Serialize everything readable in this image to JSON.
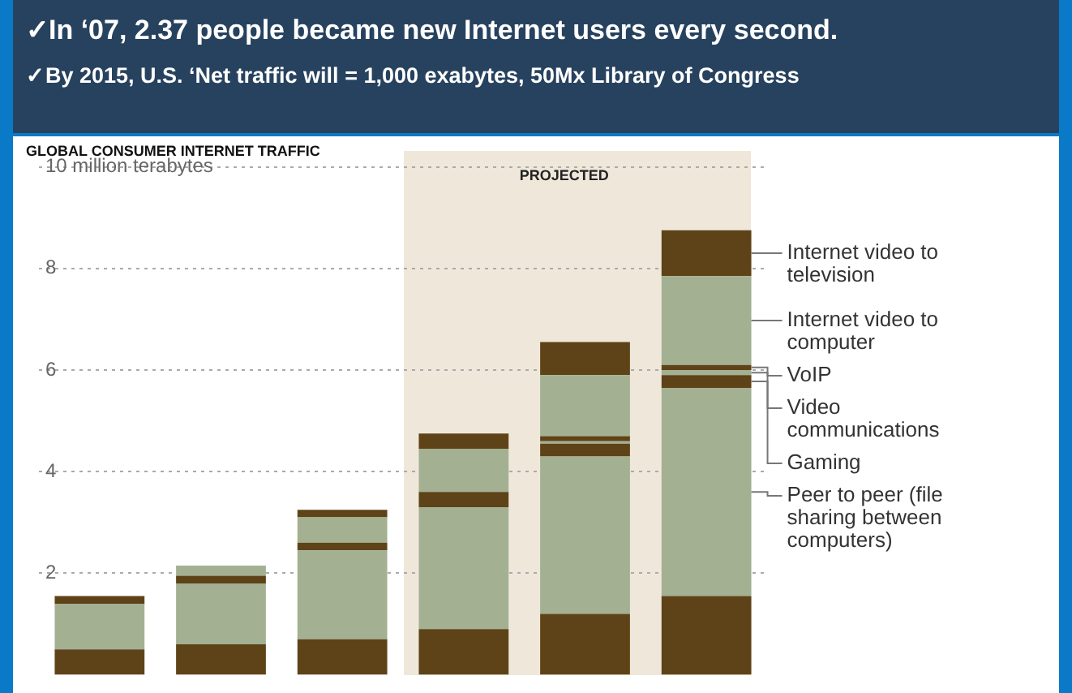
{
  "chart_data": {
    "type": "bar",
    "title": "GLOBAL CONSUMER INTERNET TRAFFIC",
    "annotations": [
      "✓In ‘07, 2.37 people became new Internet users every second.",
      "✓By 2015, U.S. ‘Net traffic will = 1,000 exabytes, 50Mx Library of Congress",
      "PROJECTED"
    ],
    "categories": [
      null,
      null,
      null,
      null,
      null,
      null
    ],
    "stacked": true,
    "series": [
      {
        "color": "#5e4318",
        "values": [
          0.5,
          0.6,
          0.7,
          0.9,
          1.2,
          1.55
        ]
      },
      {
        "name": "Peer to peer (file sharing between computers)",
        "color": "#a3b092",
        "values": [
          0.9,
          1.2,
          1.75,
          2.4,
          3.1,
          4.1
        ]
      },
      {
        "name": "Gaming",
        "color": "#5e4318",
        "values": [
          0.15,
          0.15,
          0.15,
          0.3,
          0.25,
          0.25
        ]
      },
      {
        "name": "Video communications",
        "color": "#a3b092",
        "values": [
          0,
          0,
          0,
          0,
          0.05,
          0.1
        ]
      },
      {
        "name": "VoIP",
        "color": "#5e4318",
        "values": [
          0,
          0,
          0,
          0,
          0.1,
          0.1
        ]
      },
      {
        "name": "Internet video to computer",
        "color": "#a3b092",
        "values": [
          0,
          0.2,
          0.5,
          0.85,
          1.2,
          1.75
        ]
      },
      {
        "name": "Internet video to television",
        "color": "#5e4318",
        "values": [
          0,
          0,
          0.15,
          0.3,
          0.65,
          0.9
        ]
      }
    ],
    "ylim": [
      0,
      10
    ],
    "yticks": [
      2,
      4,
      6,
      8,
      {
        "value": 10,
        "label": "10 million terabytes"
      }
    ],
    "grid": "y",
    "legend": "right"
  }
}
